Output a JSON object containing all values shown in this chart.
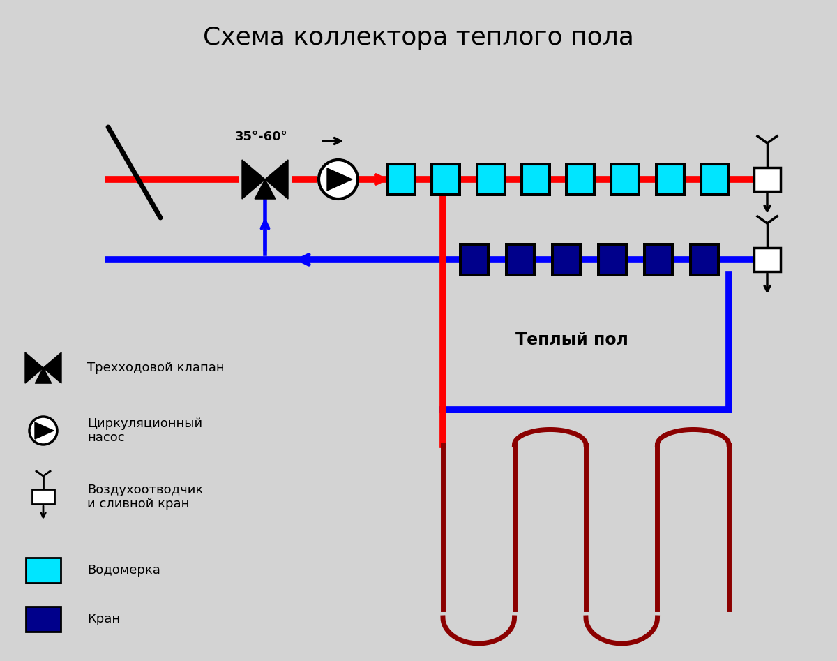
{
  "title": "Схема коллектора теплого пола",
  "bg_color": "#d3d3d3",
  "red": "#ff0000",
  "blue": "#0000ff",
  "dark_red": "#8b0000",
  "cyan": "#00e5ff",
  "dark_blue": "#00008b",
  "black": "#000000",
  "white": "#ffffff",
  "lw_pipe": 7,
  "lw_floor": 5,
  "temp_text": "35°-60°",
  "floor_text": "Теплый пол",
  "legend": [
    "Трехходовой клапан",
    "Циркуляционный\nнасос",
    "Воздухоотводчик\nи сливной кран",
    "Водомерка",
    "Кран"
  ]
}
